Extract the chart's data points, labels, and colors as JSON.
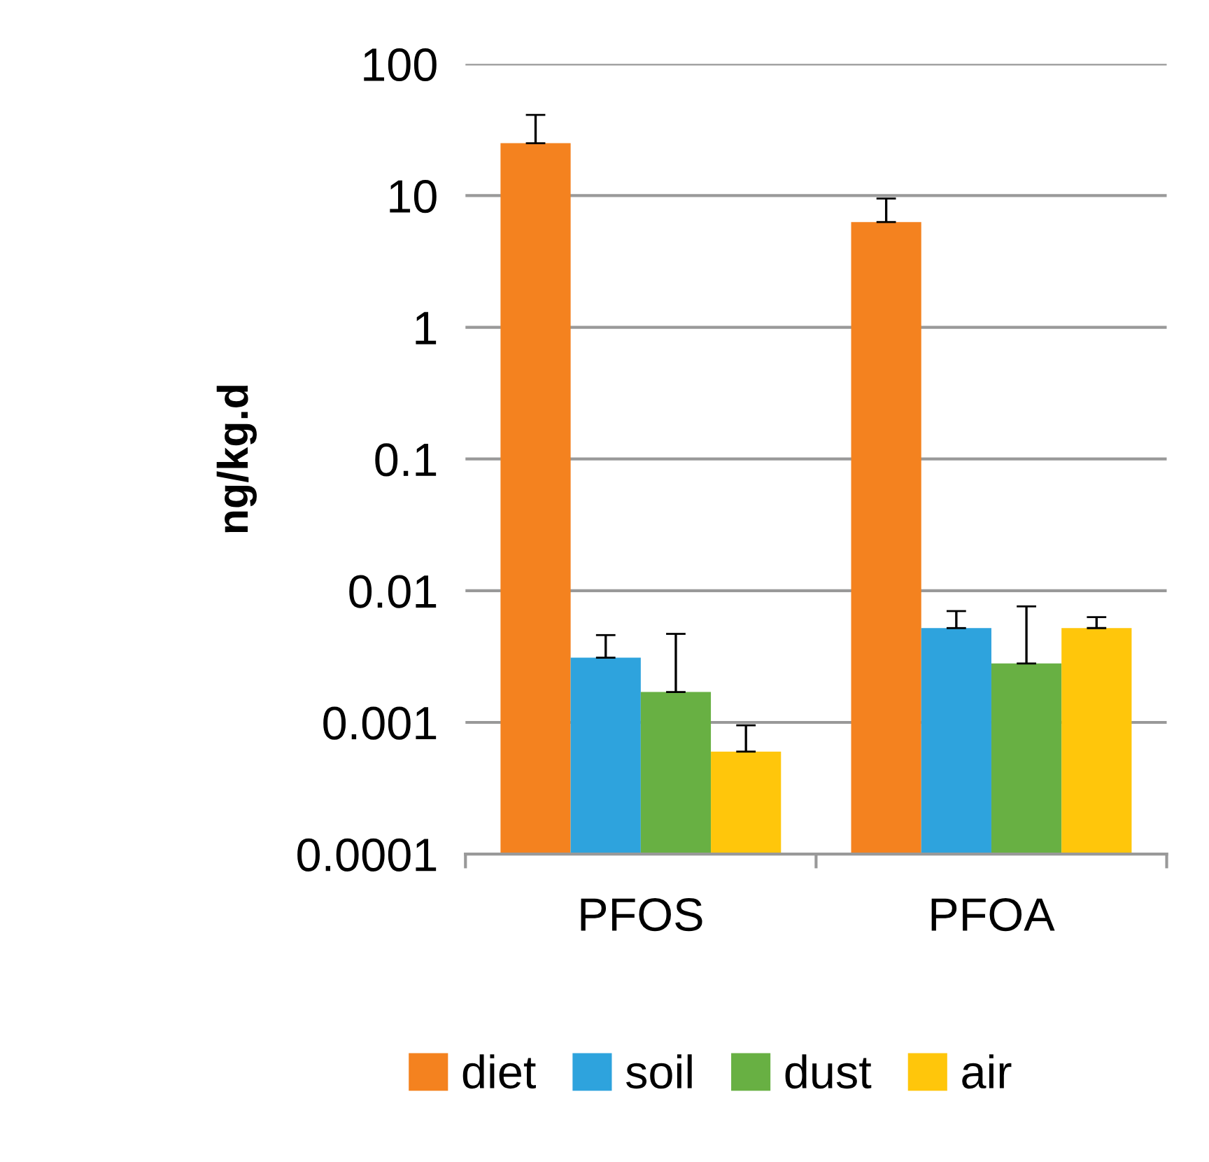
{
  "chart_data": {
    "type": "bar",
    "ylabel": "ng/kg.d",
    "log": true,
    "categories": [
      "PFOS",
      "PFOA"
    ],
    "series": [
      {
        "name": "diet",
        "color": "#f4821f",
        "values": [
          25,
          6.3
        ],
        "errors": [
          [
            25,
            41
          ],
          [
            6.3,
            9.5
          ]
        ]
      },
      {
        "name": "soil",
        "color": "#2ea3dd",
        "values": [
          0.0031,
          0.0052
        ],
        "errors": [
          [
            0.0031,
            0.0046
          ],
          [
            0.0052,
            0.007
          ]
        ]
      },
      {
        "name": "dust",
        "color": "#68b043",
        "values": [
          0.0017,
          0.0028
        ],
        "errors": [
          [
            0.0017,
            0.0047
          ],
          [
            0.0028,
            0.0076
          ]
        ]
      },
      {
        "name": "air",
        "color": "#ffc60b",
        "values": [
          0.0006,
          0.0052
        ],
        "errors": [
          [
            0.0006,
            0.00095
          ],
          [
            0.0052,
            0.0063
          ]
        ]
      }
    ],
    "ylim": [
      0.0001,
      100
    ],
    "yticks": [
      {
        "value": 0.0001,
        "label": "0.0001"
      },
      {
        "value": 0.001,
        "label": "0.001"
      },
      {
        "value": 0.01,
        "label": "0.01"
      },
      {
        "value": 0.1,
        "label": "0.1"
      },
      {
        "value": 1,
        "label": "1"
      },
      {
        "value": 10,
        "label": "10"
      },
      {
        "value": 100,
        "label": "100"
      }
    ],
    "grid": "y",
    "legend": "bottom"
  }
}
